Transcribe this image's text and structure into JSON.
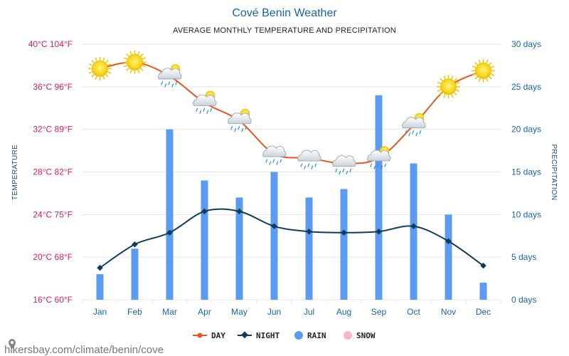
{
  "header": {
    "title": "Cové Benin Weather",
    "subtitle": "AVERAGE MONTHLY TEMPERATURE AND PRECIPITATION"
  },
  "axes": {
    "left_title": "TEMPERATURE",
    "right_title": "PRECIPITATION",
    "left_ticks": [
      "40°C 104°F",
      "36°C 96°F",
      "32°C 89°F",
      "28°C 82°F",
      "24°C 75°F",
      "20°C 68°F",
      "16°C 60°F"
    ],
    "right_ticks": [
      "30 days",
      "25 days",
      "20 days",
      "15 days",
      "10 days",
      "5 days",
      "0 days"
    ]
  },
  "legend": {
    "day": "DAY",
    "night": "NIGHT",
    "rain": "RAIN",
    "snow": "SNOW"
  },
  "footer": {
    "site": "hikersbay.com/climate/benin/cove"
  },
  "colors": {
    "day": "#e8561c",
    "night": "#0f3d57",
    "rain": "#5b9cf2",
    "snow": "#f8b6c8",
    "grid": "#e6e6e6"
  },
  "chart_data": {
    "type": "bar",
    "categories": [
      "Jan",
      "Feb",
      "Mar",
      "Apr",
      "May",
      "Jun",
      "Jul",
      "Aug",
      "Sep",
      "Oct",
      "Nov",
      "Dec"
    ],
    "title": "Cové Benin Weather",
    "subtitle": "AVERAGE MONTHLY TEMPERATURE AND PRECIPITATION",
    "ylabel_left": "TEMPERATURE",
    "ylabel_right": "PRECIPITATION",
    "ylim_left_celsius": [
      16,
      40
    ],
    "ylim_right_days": [
      0,
      30
    ],
    "series": [
      {
        "name": "DAY",
        "type": "line",
        "axis": "left",
        "unit": "°C",
        "values": [
          37.7,
          38.3,
          37.0,
          34.5,
          32.8,
          29.7,
          29.3,
          28.8,
          29.3,
          32.4,
          36.0,
          37.5
        ]
      },
      {
        "name": "NIGHT",
        "type": "line",
        "axis": "left",
        "unit": "°C",
        "values": [
          19.0,
          21.2,
          22.3,
          24.3,
          24.3,
          22.9,
          22.4,
          22.3,
          22.4,
          22.9,
          21.5,
          19.2
        ]
      },
      {
        "name": "RAIN",
        "type": "bar",
        "axis": "right",
        "unit": "days",
        "values": [
          3,
          6,
          20,
          14,
          12,
          15,
          12,
          13,
          24,
          16,
          10,
          2
        ]
      },
      {
        "name": "SNOW",
        "type": "bar",
        "axis": "right",
        "unit": "days",
        "values": [
          0,
          0,
          0,
          0,
          0,
          0,
          0,
          0,
          0,
          0,
          0,
          0
        ]
      }
    ],
    "weather_icons": [
      "sun-icon",
      "sun-icon",
      "rain-cloud-icon",
      "rain-cloud-icon",
      "rain-cloud-icon",
      "rain-cloud-icon",
      "rain-cloud-icon",
      "rain-cloud-icon",
      "rain-cloud-icon",
      "rain-cloud-icon",
      "sun-icon",
      "sun-icon"
    ],
    "weather_icon_sun_peek": [
      false,
      false,
      true,
      true,
      true,
      false,
      false,
      false,
      true,
      true,
      false,
      false
    ],
    "grid": true,
    "legend_position": "bottom-center"
  }
}
